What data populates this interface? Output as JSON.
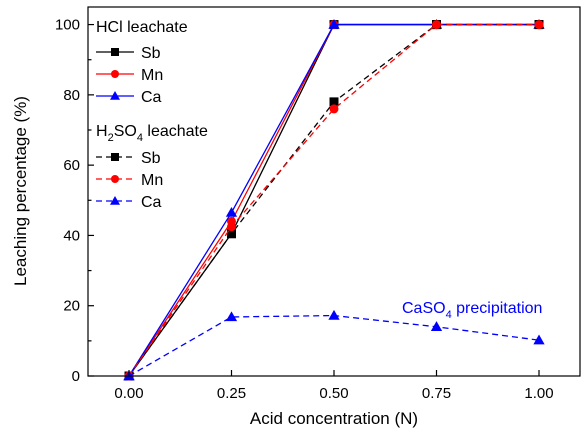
{
  "chart_data": {
    "type": "line",
    "xlabel": "Acid concentration (N)",
    "ylabel": "Leaching percentage (%)",
    "xlim": [
      -0.1,
      1.1
    ],
    "ylim": [
      0,
      105
    ],
    "x": [
      0.0,
      0.25,
      0.5,
      0.75,
      1.0
    ],
    "xticks": [
      "0.00",
      "0.25",
      "0.50",
      "0.75",
      "1.00"
    ],
    "yticks": [
      "0",
      "20",
      "40",
      "60",
      "80",
      "100"
    ],
    "grid": false,
    "legend_position": "top-left",
    "legend": {
      "hcl_title": "HCl leachate",
      "h2so4_title": {
        "prefix": "H",
        "sub1": "2",
        "mid": "SO",
        "sub2": "4",
        "suffix": " leachate"
      }
    },
    "annotation": {
      "prefix": "CaSO",
      "sub": "4",
      "suffix": " precipitation",
      "color": "#0000ff"
    },
    "series": [
      {
        "name": "Sb",
        "group": "HCl",
        "color": "#000000",
        "marker": "square",
        "dash": "solid",
        "values": [
          0,
          40.5,
          100,
          100,
          100
        ]
      },
      {
        "name": "Mn",
        "group": "HCl",
        "color": "#ff0000",
        "marker": "circle",
        "dash": "solid",
        "values": [
          0,
          44,
          100,
          100,
          100
        ]
      },
      {
        "name": "Ca",
        "group": "HCl",
        "color": "#0000ff",
        "marker": "triangle",
        "dash": "solid",
        "values": [
          0,
          46.5,
          100,
          100,
          100
        ]
      },
      {
        "name": "Sb",
        "group": "H2SO4",
        "color": "#000000",
        "marker": "square",
        "dash": "dashed",
        "values": [
          0,
          40.5,
          78,
          100,
          100
        ]
      },
      {
        "name": "Mn",
        "group": "H2SO4",
        "color": "#ff0000",
        "marker": "circle",
        "dash": "dashed",
        "values": [
          0,
          42.5,
          76,
          100,
          100
        ]
      },
      {
        "name": "Ca",
        "group": "H2SO4",
        "color": "#0000ff",
        "marker": "triangle",
        "dash": "dashed",
        "values": [
          0,
          16.8,
          17.2,
          14,
          10.2
        ]
      }
    ]
  }
}
